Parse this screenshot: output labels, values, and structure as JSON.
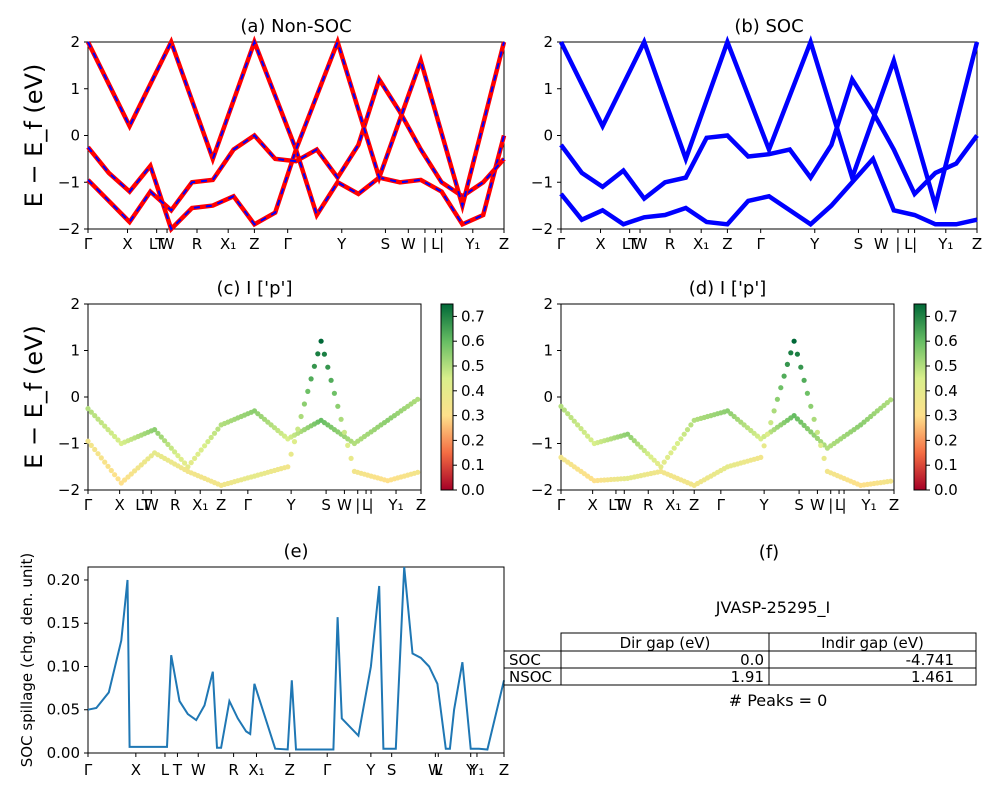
{
  "figure_id": "JVASP-25295_I",
  "kpath_labels": [
    "Γ",
    "X",
    "LT",
    "W",
    "R",
    "X₁",
    "Z",
    "Γ",
    "Y",
    "S",
    "W",
    "|",
    "L",
    "|",
    "Y₁",
    "Z"
  ],
  "panel_e_kpath_labels": [
    "Γ",
    "X",
    "L",
    "T",
    "W",
    "R",
    "X₁",
    "Z",
    "Γ",
    "Y",
    "S",
    "W",
    "L",
    "Y",
    "Y₁",
    "Z"
  ],
  "colorbar_ticks": [
    "0.0",
    "0.1",
    "0.2",
    "0.3",
    "0.4",
    "0.5",
    "0.6",
    "0.7"
  ],
  "colors": {
    "nonsoc_line": "#ff0000",
    "nonsoc_dash": "#0000ff",
    "soc_line": "#0000ff",
    "spillage": "#1f77b4"
  },
  "chart_data": [
    {
      "panel": "a",
      "type": "line",
      "title": "(a) Non-SOC",
      "ylabel": "E − E_f (eV)",
      "ylim": [
        -2,
        2
      ],
      "yticks": [
        "2",
        "1",
        "0",
        "−1",
        "−2"
      ],
      "series": [
        {
          "x": [
            0,
            0.05,
            0.1,
            0.15,
            0.2,
            0.25,
            0.3,
            0.35,
            0.4,
            0.45,
            0.5,
            0.55,
            0.6,
            0.65,
            0.7,
            0.75,
            0.8,
            0.85,
            0.9,
            0.95,
            1.0
          ],
          "y": [
            -0.25,
            -0.8,
            -1.2,
            -0.65,
            -2,
            -1.55,
            -1.5,
            -1.3,
            -1.9,
            -1.65,
            -0.3,
            -1.7,
            -1.0,
            -1.25,
            -0.9,
            -1.0,
            -0.95,
            -1.2,
            -1.9,
            -1.7,
            0
          ]
        },
        {
          "x": [
            0,
            0.05,
            0.1,
            0.15,
            0.2,
            0.25,
            0.3,
            0.35,
            0.4,
            0.45,
            0.5,
            0.55,
            0.6,
            0.65,
            0.7,
            0.75,
            0.8,
            0.85,
            0.9,
            0.95,
            1.0
          ],
          "y": [
            -0.95,
            -1.4,
            -1.85,
            -1.2,
            -1.6,
            -1.0,
            -0.95,
            -0.3,
            0,
            -0.5,
            -0.55,
            -0.3,
            -0.9,
            -0.2,
            1.2,
            0.5,
            -0.3,
            -1.0,
            -1.3,
            -1.0,
            -0.5
          ]
        },
        {
          "x": [
            0,
            0.1,
            0.2,
            0.3,
            0.4,
            0.5,
            0.6,
            0.7,
            0.8,
            0.9,
            1.0
          ],
          "y": [
            2,
            0.2,
            2,
            -0.5,
            2,
            -0.3,
            2,
            -0.9,
            1.6,
            -1.5,
            2
          ]
        }
      ]
    },
    {
      "panel": "b",
      "type": "line",
      "title": "(b) SOC",
      "ylim": [
        -2,
        2
      ],
      "yticks": [
        "2",
        "1",
        "0",
        "−1",
        "−2"
      ],
      "series": [
        {
          "x": [
            0,
            0.05,
            0.1,
            0.15,
            0.2,
            0.25,
            0.3,
            0.35,
            0.4,
            0.45,
            0.5,
            0.55,
            0.6,
            0.65,
            0.7,
            0.75,
            0.8,
            0.85,
            0.9,
            0.95,
            1.0
          ],
          "y": [
            -0.2,
            -0.8,
            -1.1,
            -0.75,
            -1.35,
            -1.0,
            -0.9,
            -0.05,
            0,
            -0.45,
            -0.4,
            -0.3,
            -0.9,
            -0.2,
            1.2,
            0.5,
            -0.3,
            -1.25,
            -0.8,
            -0.6,
            0
          ]
        },
        {
          "x": [
            0,
            0.05,
            0.1,
            0.15,
            0.2,
            0.25,
            0.3,
            0.35,
            0.4,
            0.45,
            0.5,
            0.55,
            0.6,
            0.65,
            0.7,
            0.75,
            0.8,
            0.85,
            0.9,
            0.95,
            1.0
          ],
          "y": [
            -1.25,
            -1.8,
            -1.6,
            -1.9,
            -1.75,
            -1.7,
            -1.55,
            -1.85,
            -1.9,
            -1.4,
            -1.3,
            -1.6,
            -1.9,
            -1.5,
            -1.0,
            -0.5,
            -1.6,
            -1.7,
            -1.9,
            -1.9,
            -1.8
          ]
        },
        {
          "x": [
            0,
            0.1,
            0.2,
            0.3,
            0.4,
            0.5,
            0.6,
            0.7,
            0.8,
            0.9,
            1.0
          ],
          "y": [
            2,
            0.2,
            2,
            -0.5,
            2,
            -0.3,
            2,
            -0.9,
            1.6,
            -1.5,
            2
          ]
        }
      ]
    },
    {
      "panel": "c",
      "type": "scatter",
      "title": "(c)  I ['p']",
      "ylabel": "E − E_f (eV)",
      "ylim": [
        -2,
        2
      ],
      "yticks": [
        "2",
        "1",
        "0",
        "−1",
        "−2"
      ],
      "colorbar": [
        0,
        0.75
      ],
      "series": [
        {
          "x": [
            0,
            0.1,
            0.2,
            0.3,
            0.4,
            0.5,
            0.6,
            0.7,
            0.8,
            0.9,
            1.0
          ],
          "y": [
            -0.25,
            -1.0,
            -0.7,
            -1.5,
            -0.6,
            -0.3,
            -0.9,
            -0.5,
            -1.0,
            -0.5,
            0
          ],
          "c": [
            0.5,
            0.45,
            0.55,
            0.4,
            0.5,
            0.55,
            0.45,
            0.6,
            0.5,
            0.55,
            0.5
          ]
        },
        {
          "x": [
            0,
            0.1,
            0.2,
            0.3,
            0.4,
            0.5,
            0.6,
            0.7,
            0.8,
            0.9,
            1.0
          ],
          "y": [
            -0.95,
            -1.85,
            -1.2,
            -1.6,
            -1.9,
            -1.7,
            -1.5,
            1.2,
            -1.6,
            -1.8,
            -1.6
          ],
          "c": [
            0.35,
            0.3,
            0.4,
            0.35,
            0.35,
            0.4,
            0.35,
            0.75,
            0.35,
            0.3,
            0.35
          ]
        }
      ]
    },
    {
      "panel": "d",
      "type": "scatter",
      "title": "(d) I ['p']",
      "ylim": [
        -2,
        2
      ],
      "yticks": [
        "2",
        "1",
        "0",
        "−1",
        "−2"
      ],
      "colorbar": [
        0,
        0.75
      ],
      "series": [
        {
          "x": [
            0,
            0.1,
            0.2,
            0.3,
            0.4,
            0.5,
            0.6,
            0.7,
            0.8,
            0.9,
            1.0
          ],
          "y": [
            -0.2,
            -1.0,
            -0.8,
            -1.5,
            -0.5,
            -0.3,
            -0.9,
            -0.4,
            -1.1,
            -0.6,
            0
          ],
          "c": [
            0.5,
            0.45,
            0.55,
            0.4,
            0.5,
            0.55,
            0.45,
            0.6,
            0.5,
            0.55,
            0.5
          ]
        },
        {
          "x": [
            0,
            0.1,
            0.2,
            0.3,
            0.4,
            0.5,
            0.6,
            0.7,
            0.8,
            0.9,
            1.0
          ],
          "y": [
            -1.3,
            -1.8,
            -1.75,
            -1.6,
            -1.9,
            -1.5,
            -1.3,
            1.2,
            -1.6,
            -1.9,
            -1.8
          ],
          "c": [
            0.35,
            0.3,
            0.4,
            0.35,
            0.35,
            0.4,
            0.35,
            0.75,
            0.35,
            0.3,
            0.35
          ]
        }
      ]
    },
    {
      "panel": "e",
      "type": "line",
      "title": "(e)",
      "ylabel": "SOC spillage (chg. den. unit)",
      "ylim": [
        0,
        0.215
      ],
      "yticks": [
        "0.20",
        "0.15",
        "0.10",
        "0.05",
        "0.00"
      ],
      "series": [
        {
          "x": [
            0,
            0.02,
            0.05,
            0.08,
            0.095,
            0.1,
            0.15,
            0.19,
            0.2,
            0.22,
            0.24,
            0.26,
            0.28,
            0.3,
            0.31,
            0.32,
            0.34,
            0.36,
            0.38,
            0.39,
            0.4,
            0.45,
            0.48,
            0.49,
            0.5,
            0.55,
            0.59,
            0.6,
            0.61,
            0.65,
            0.68,
            0.7,
            0.71,
            0.74,
            0.76,
            0.78,
            0.8,
            0.82,
            0.84,
            0.86,
            0.87,
            0.88,
            0.9,
            0.92,
            0.94,
            0.96,
            1.0
          ],
          "y": [
            0.05,
            0.052,
            0.07,
            0.13,
            0.2,
            0.007,
            0.007,
            0.007,
            0.113,
            0.06,
            0.045,
            0.038,
            0.055,
            0.094,
            0.006,
            0.006,
            0.06,
            0.04,
            0.025,
            0.022,
            0.08,
            0.005,
            0.004,
            0.084,
            0.004,
            0.004,
            0.004,
            0.157,
            0.04,
            0.02,
            0.1,
            0.193,
            0.005,
            0.005,
            0.215,
            0.115,
            0.11,
            0.1,
            0.08,
            0.005,
            0.005,
            0.05,
            0.105,
            0.005,
            0.005,
            0.004,
            0.084
          ]
        }
      ]
    },
    {
      "panel": "f",
      "type": "table",
      "title": "(f)",
      "caption": "JVASP-25295_I",
      "columns": [
        "",
        "Dir gap (eV)",
        "Indir gap (eV)"
      ],
      "rows": [
        [
          "SOC",
          "0.0",
          "-4.741"
        ],
        [
          "NSOC",
          "1.91",
          "1.461"
        ]
      ],
      "footer": "# Peaks = 0"
    }
  ]
}
